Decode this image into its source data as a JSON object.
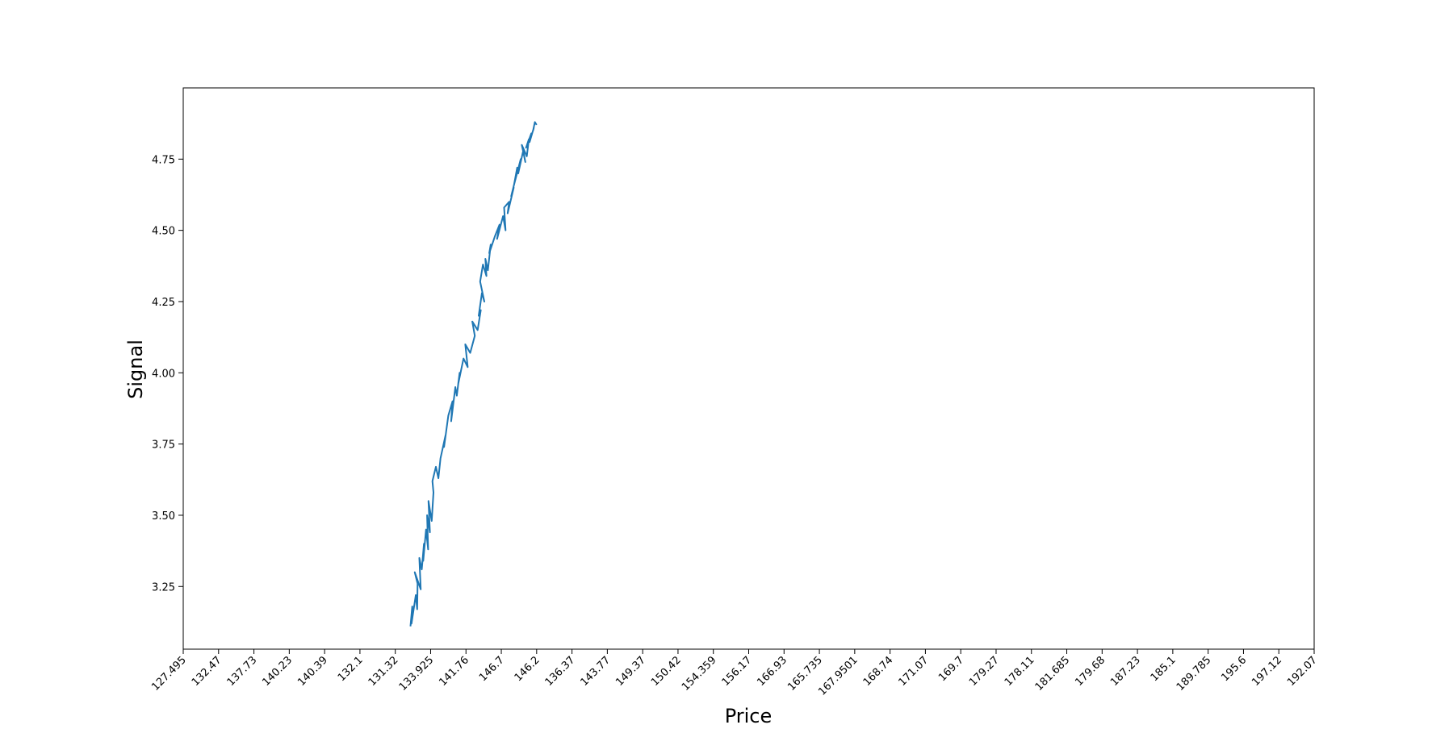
{
  "chart_data": {
    "type": "line",
    "title": "",
    "xlabel": "Price",
    "ylabel": "Signal",
    "x_ticks": [
      "127.495",
      "132.47",
      "137.73",
      "140.23",
      "140.39",
      "132.1",
      "131.32",
      "133.925",
      "141.76",
      "146.7",
      "146.2",
      "136.37",
      "143.77",
      "149.37",
      "150.42",
      "154.359",
      "156.17",
      "166.93",
      "165.735",
      "167.9501",
      "168.74",
      "171.07",
      "169.7",
      "179.27",
      "178.11",
      "181.685",
      "179.68",
      "187.23",
      "185.1",
      "189.785",
      "195.6",
      "197.12",
      "192.07"
    ],
    "y_ticks": [
      "3.25",
      "3.50",
      "3.75",
      "4.00",
      "4.25",
      "4.50",
      "4.75"
    ],
    "ylim": [
      3.03,
      5.0
    ],
    "grid": false,
    "color": "#1f77b4",
    "x_index": [
      6.43,
      6.48,
      6.46,
      6.58,
      6.62,
      6.63,
      6.55,
      6.72,
      6.68,
      6.75,
      6.81,
      6.79,
      6.87,
      6.93,
      6.9,
      6.98,
      6.94,
      7.03,
      7.08,
      7.05,
      7.15,
      7.22,
      7.28,
      7.42,
      7.38,
      7.5,
      7.62,
      7.58,
      7.7,
      7.74,
      7.82,
      7.78,
      7.93,
      8.05,
      7.98,
      8.12,
      8.25,
      8.18,
      8.33,
      8.42,
      8.36,
      8.45,
      8.52,
      8.4,
      8.48,
      8.58,
      8.55,
      8.62,
      8.7,
      8.66,
      8.82,
      8.95,
      8.88,
      9.05,
      9.12,
      9.08,
      9.22,
      9.18,
      9.35,
      9.28,
      9.4,
      9.45,
      9.36,
      9.55,
      9.48,
      9.62,
      9.68,
      9.58,
      9.72,
      9.78,
      9.7,
      9.85,
      9.8,
      9.92,
      9.9,
      9.95,
      10.0
    ],
    "y": [
      3.11,
      3.18,
      3.12,
      3.22,
      3.17,
      3.26,
      3.3,
      3.24,
      3.35,
      3.31,
      3.4,
      3.34,
      3.45,
      3.38,
      3.5,
      3.44,
      3.55,
      3.48,
      3.58,
      3.62,
      3.67,
      3.63,
      3.7,
      3.78,
      3.74,
      3.85,
      3.9,
      3.83,
      3.95,
      3.92,
      4.0,
      3.96,
      4.05,
      4.02,
      4.1,
      4.07,
      4.13,
      4.18,
      4.15,
      4.22,
      4.2,
      4.28,
      4.25,
      4.32,
      4.38,
      4.34,
      4.4,
      4.36,
      4.45,
      4.42,
      4.48,
      4.52,
      4.47,
      4.55,
      4.5,
      4.58,
      4.6,
      4.56,
      4.65,
      4.62,
      4.68,
      4.72,
      4.66,
      4.75,
      4.7,
      4.78,
      4.74,
      4.8,
      4.76,
      4.82,
      4.79,
      4.84,
      4.81,
      4.86,
      4.85,
      4.88,
      4.87
    ]
  }
}
